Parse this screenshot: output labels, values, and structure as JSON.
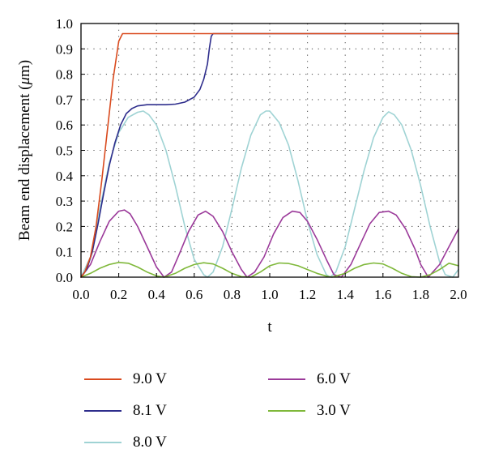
{
  "chart_data": {
    "type": "line",
    "title": "",
    "xlabel": "t",
    "ylabel_text": "Beam end displacement (",
    "ylabel_unit_symbol": "μ",
    "ylabel_unit_rest": "m)",
    "xlim": [
      0.0,
      2.0
    ],
    "ylim": [
      0.0,
      1.0
    ],
    "x_ticks": [
      "0.0",
      "0.2",
      "0.4",
      "0.6",
      "0.8",
      "1.0",
      "1.2",
      "1.4",
      "1.6",
      "1.8",
      "2.0"
    ],
    "y_ticks": [
      "0.0",
      "0.1",
      "0.2",
      "0.3",
      "0.4",
      "0.5",
      "0.6",
      "0.7",
      "0.8",
      "0.9",
      "1.0"
    ],
    "grid": "dotted",
    "legend_position": "bottom",
    "series": [
      {
        "name": "9.0 V",
        "color": "#d94a1e",
        "x": [
          0.0,
          0.02,
          0.05,
          0.08,
          0.11,
          0.14,
          0.17,
          0.2,
          0.22,
          0.23,
          2.0
        ],
        "y": [
          0.0,
          0.02,
          0.08,
          0.2,
          0.38,
          0.58,
          0.78,
          0.93,
          0.96,
          0.96,
          0.96
        ]
      },
      {
        "name": "8.1 V",
        "color": "#2e2d8c",
        "x": [
          0.0,
          0.03,
          0.06,
          0.09,
          0.12,
          0.15,
          0.18,
          0.21,
          0.24,
          0.27,
          0.3,
          0.35,
          0.4,
          0.45,
          0.5,
          0.55,
          0.6,
          0.63,
          0.65,
          0.67,
          0.68,
          0.69,
          0.7,
          0.75,
          2.0
        ],
        "y": [
          0.0,
          0.03,
          0.1,
          0.21,
          0.33,
          0.44,
          0.53,
          0.6,
          0.645,
          0.665,
          0.675,
          0.68,
          0.68,
          0.68,
          0.682,
          0.69,
          0.71,
          0.74,
          0.78,
          0.84,
          0.9,
          0.95,
          0.96,
          0.96,
          0.96
        ]
      },
      {
        "name": "8.0 V",
        "color": "#9fd3d4",
        "x": [
          0.0,
          0.05,
          0.1,
          0.15,
          0.2,
          0.25,
          0.3,
          0.33,
          0.36,
          0.4,
          0.45,
          0.5,
          0.55,
          0.6,
          0.65,
          0.67,
          0.7,
          0.75,
          0.8,
          0.85,
          0.9,
          0.95,
          0.98,
          1.0,
          1.05,
          1.1,
          1.15,
          1.2,
          1.25,
          1.3,
          1.32,
          1.35,
          1.4,
          1.45,
          1.5,
          1.55,
          1.6,
          1.63,
          1.66,
          1.7,
          1.75,
          1.8,
          1.85,
          1.9,
          1.93,
          1.97,
          2.0
        ],
        "y": [
          0.0,
          0.08,
          0.27,
          0.45,
          0.57,
          0.63,
          0.65,
          0.655,
          0.64,
          0.6,
          0.5,
          0.36,
          0.2,
          0.07,
          0.01,
          0.0,
          0.02,
          0.12,
          0.27,
          0.43,
          0.56,
          0.64,
          0.655,
          0.655,
          0.61,
          0.52,
          0.38,
          0.22,
          0.09,
          0.01,
          0.0,
          0.02,
          0.12,
          0.27,
          0.42,
          0.55,
          0.63,
          0.652,
          0.64,
          0.6,
          0.5,
          0.36,
          0.2,
          0.06,
          0.01,
          0.0,
          0.03
        ]
      },
      {
        "name": "6.0 V",
        "color": "#9b3a9a",
        "x": [
          0.0,
          0.05,
          0.1,
          0.15,
          0.2,
          0.23,
          0.26,
          0.3,
          0.35,
          0.4,
          0.44,
          0.48,
          0.52,
          0.57,
          0.62,
          0.66,
          0.7,
          0.75,
          0.8,
          0.85,
          0.88,
          0.92,
          0.97,
          1.02,
          1.07,
          1.12,
          1.16,
          1.2,
          1.25,
          1.3,
          1.34,
          1.38,
          1.43,
          1.48,
          1.53,
          1.58,
          1.63,
          1.67,
          1.72,
          1.77,
          1.8,
          1.84,
          1.9,
          1.95,
          2.0
        ],
        "y": [
          0.0,
          0.05,
          0.14,
          0.22,
          0.26,
          0.265,
          0.25,
          0.2,
          0.12,
          0.04,
          0.0,
          0.02,
          0.09,
          0.18,
          0.245,
          0.26,
          0.24,
          0.18,
          0.1,
          0.03,
          0.0,
          0.02,
          0.08,
          0.17,
          0.235,
          0.26,
          0.255,
          0.22,
          0.15,
          0.07,
          0.01,
          0.0,
          0.05,
          0.13,
          0.21,
          0.255,
          0.26,
          0.245,
          0.19,
          0.11,
          0.05,
          0.0,
          0.05,
          0.12,
          0.19
        ]
      },
      {
        "name": "3.0 V",
        "color": "#7fb83a",
        "x": [
          0.0,
          0.05,
          0.1,
          0.15,
          0.2,
          0.25,
          0.3,
          0.35,
          0.4,
          0.44,
          0.5,
          0.55,
          0.6,
          0.65,
          0.7,
          0.75,
          0.8,
          0.85,
          0.9,
          0.95,
          1.0,
          1.05,
          1.1,
          1.15,
          1.2,
          1.25,
          1.3,
          1.33,
          1.4,
          1.45,
          1.5,
          1.55,
          1.6,
          1.65,
          1.7,
          1.75,
          1.8,
          1.85,
          1.9,
          1.95,
          2.0
        ],
        "y": [
          0.0,
          0.015,
          0.035,
          0.05,
          0.058,
          0.055,
          0.04,
          0.02,
          0.005,
          0.0,
          0.015,
          0.035,
          0.05,
          0.057,
          0.052,
          0.035,
          0.015,
          0.002,
          0.0,
          0.02,
          0.045,
          0.056,
          0.054,
          0.045,
          0.03,
          0.015,
          0.004,
          0.0,
          0.015,
          0.035,
          0.05,
          0.056,
          0.052,
          0.035,
          0.015,
          0.002,
          0.0,
          0.01,
          0.03,
          0.055,
          0.045
        ]
      }
    ]
  }
}
